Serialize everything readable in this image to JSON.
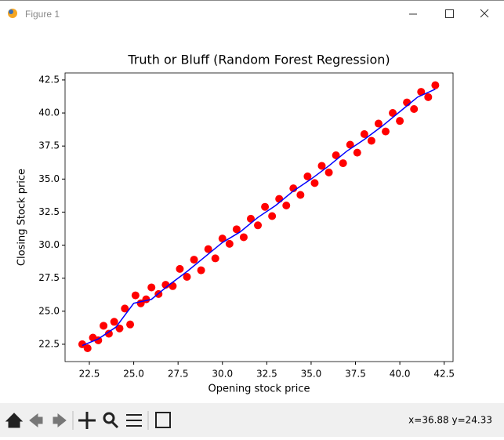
{
  "window": {
    "title": "Figure 1",
    "status": "x=36.88 y=24.33"
  },
  "chart_data": {
    "type": "scatter",
    "title": "Truth or Bluff (Random Forest Regression)",
    "x_label": "Opening stock price",
    "y_label": "Closing Stock price",
    "xlim": [
      21.13,
      43.0
    ],
    "ylim": [
      21.19,
      43.03
    ],
    "xticks": [
      22.5,
      {
        "value": 25,
        "label": "25.0"
      },
      27.5,
      {
        "value": 30,
        "label": "30.0"
      },
      32.5,
      {
        "value": 35,
        "label": "35.0"
      },
      37.5,
      {
        "value": 40,
        "label": "40.0"
      },
      42.5
    ],
    "yticks": [
      22.5,
      {
        "value": 25,
        "label": "25.0"
      },
      27.5,
      {
        "value": 30,
        "label": "30.0"
      },
      32.5,
      {
        "value": 35,
        "label": "35.0"
      },
      37.5,
      {
        "value": 40,
        "label": "40.0"
      },
      42.5
    ],
    "series": [
      {
        "type": "scatter",
        "color": "#ff0000",
        "x": [
          22.1,
          22.4,
          22.7,
          23.0,
          23.3,
          23.6,
          23.9,
          24.2,
          24.5,
          24.8,
          25.1,
          25.4,
          25.7,
          26.0,
          26.4,
          26.8,
          27.2,
          27.6,
          28.0,
          28.4,
          28.8,
          29.2,
          29.6,
          30.0,
          30.4,
          30.8,
          31.2,
          31.6,
          32.0,
          32.4,
          32.8,
          33.2,
          33.6,
          34.0,
          34.4,
          34.8,
          35.2,
          35.6,
          36.0,
          36.4,
          36.8,
          37.2,
          37.6,
          38.0,
          38.4,
          38.8,
          39.2,
          39.6,
          40.0,
          40.4,
          40.8,
          41.2,
          41.6,
          42.0
        ],
        "values": [
          22.5,
          22.2,
          23.0,
          22.8,
          23.9,
          23.3,
          24.2,
          23.7,
          25.2,
          24.0,
          26.2,
          25.6,
          25.9,
          26.8,
          26.3,
          27.0,
          26.9,
          28.2,
          27.6,
          28.9,
          28.1,
          29.7,
          29.0,
          30.5,
          30.1,
          31.2,
          30.6,
          32.0,
          31.5,
          32.9,
          32.2,
          33.5,
          33.0,
          34.3,
          33.8,
          35.2,
          34.7,
          36.0,
          35.5,
          36.8,
          36.2,
          37.6,
          37.0,
          38.4,
          37.9,
          39.2,
          38.6,
          40.0,
          39.4,
          40.8,
          40.3,
          41.6,
          41.2,
          42.1
        ]
      },
      {
        "type": "line",
        "color": "#0000ff",
        "x": [
          22.1,
          23,
          24,
          25,
          26,
          27,
          28,
          29,
          30,
          31,
          32,
          33,
          34,
          35,
          36,
          37,
          38,
          39,
          40,
          41,
          42
        ],
        "values": [
          22.4,
          22.9,
          23.8,
          25.6,
          25.9,
          27.0,
          28.0,
          29.1,
          30.2,
          31.0,
          32.1,
          33.0,
          34.1,
          35.0,
          36.0,
          37.1,
          38.0,
          39.0,
          40.1,
          41.2,
          41.8
        ]
      }
    ]
  }
}
